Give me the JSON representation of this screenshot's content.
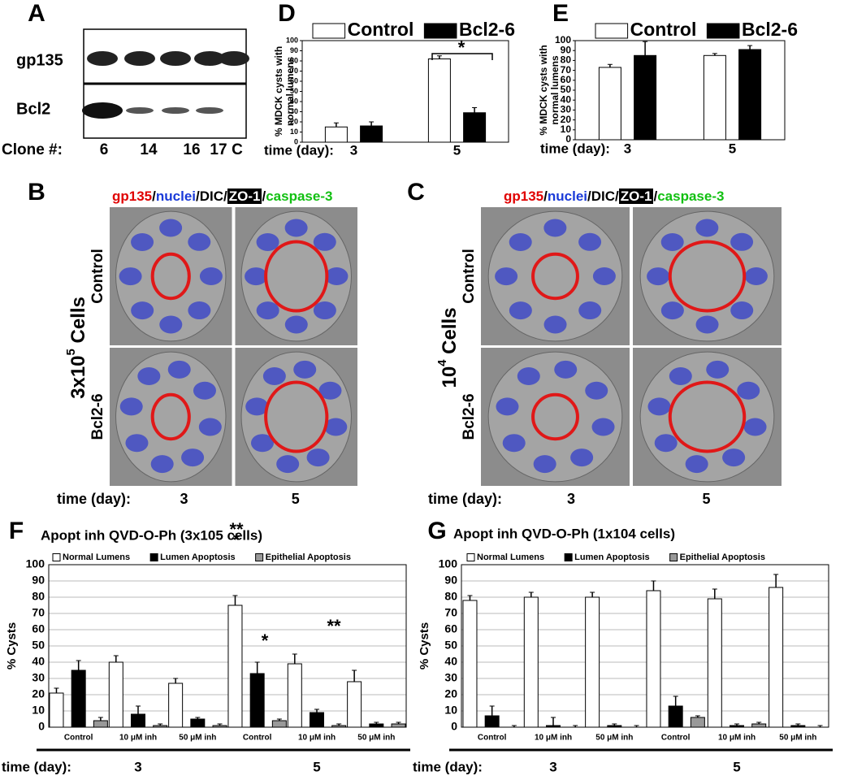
{
  "blot": {
    "panel": "A",
    "rows": [
      "gp135",
      "Bcl2"
    ],
    "lane_label": "Clone #:",
    "lanes": [
      "6",
      "14",
      "16",
      "17",
      "C"
    ]
  },
  "micrographs": [
    {
      "panel": "B",
      "header": [
        {
          "text": "gp135",
          "color": "#e00000"
        },
        {
          "text": "/",
          "color": "#000000"
        },
        {
          "text": "nuclei",
          "color": "#1a3ad8"
        },
        {
          "text": "/DIC/",
          "color": "#000000"
        },
        {
          "text": "ZO-1",
          "color": "#ffffff",
          "box": "#000000"
        },
        {
          "text": "/",
          "color": "#000000"
        },
        {
          "text": "caspase-3",
          "color": "#12c012"
        }
      ],
      "density": [
        "3x10",
        "5",
        " Cells"
      ],
      "rows": [
        "Control",
        "Bcl2-6"
      ],
      "time_label": "time (day):",
      "times": [
        "3",
        "5"
      ]
    },
    {
      "panel": "C",
      "header": [
        {
          "text": "gp135",
          "color": "#e00000"
        },
        {
          "text": "/",
          "color": "#000000"
        },
        {
          "text": "nuclei",
          "color": "#1a3ad8"
        },
        {
          "text": "/DIC/",
          "color": "#000000"
        },
        {
          "text": "ZO-1",
          "color": "#ffffff",
          "box": "#000000"
        },
        {
          "text": "/",
          "color": "#000000"
        },
        {
          "text": "caspase-3",
          "color": "#12c012"
        }
      ],
      "density": [
        "10",
        "4",
        " Cells"
      ],
      "rows": [
        "Control",
        "Bcl2-6"
      ],
      "time_label": "time (day):",
      "times": [
        "3",
        "5"
      ]
    }
  ],
  "chart_data": [
    {
      "type": "bar",
      "panel": "D",
      "ylabel": [
        "% MDCK cysts with",
        "normal lumens"
      ],
      "xlabel": "time (day):",
      "categories": [
        "3",
        "5"
      ],
      "series": [
        {
          "name": "Control",
          "color": "#ffffff",
          "values": [
            15,
            82
          ],
          "errors": [
            4,
            3
          ]
        },
        {
          "name": "Bcl2-6",
          "color": "#000000",
          "values": [
            16,
            29
          ],
          "errors": [
            4,
            5
          ]
        }
      ],
      "ylim": [
        0,
        100
      ],
      "yticks": [
        0,
        10,
        20,
        30,
        40,
        50,
        60,
        70,
        80,
        90,
        100
      ],
      "grid": false,
      "annotations": [
        "*"
      ]
    },
    {
      "type": "bar",
      "panel": "E",
      "ylabel": [
        "% MDCK cysts with",
        "normal lumens"
      ],
      "xlabel": "time (day):",
      "categories": [
        "3",
        "5"
      ],
      "series": [
        {
          "name": "Control",
          "color": "#ffffff",
          "values": [
            73,
            85
          ],
          "errors": [
            3,
            2
          ]
        },
        {
          "name": "Bcl2-6",
          "color": "#000000",
          "values": [
            85,
            91
          ],
          "errors": [
            14,
            4
          ]
        }
      ],
      "ylim": [
        0,
        100
      ],
      "yticks": [
        0,
        10,
        20,
        30,
        40,
        50,
        60,
        70,
        80,
        90,
        100
      ],
      "grid": false,
      "annotations": []
    },
    {
      "type": "bar",
      "panel": "F",
      "title": "Apopt inh QVD-O-Ph (3x105 cells)",
      "ylabel": [
        "% Cysts"
      ],
      "xlabel": "time (day):",
      "groups": [
        "3",
        "5"
      ],
      "categories": [
        "Control",
        "10 μM inh",
        "50 μM inh",
        "Control",
        "10 μM inh",
        "50 μM inh"
      ],
      "series": [
        {
          "name": "Normal Lumens",
          "color": "#ffffff",
          "values": [
            21,
            40,
            27,
            75,
            39,
            28
          ],
          "errors": [
            3,
            4,
            3,
            6,
            6,
            7
          ]
        },
        {
          "name": "Lumen Apoptosis",
          "color": "#000000",
          "values": [
            35,
            8,
            5,
            33,
            9,
            2
          ],
          "errors": [
            6,
            5,
            1,
            7,
            2,
            1
          ]
        },
        {
          "name": "Epithelial Apoptosis",
          "color": "#999999",
          "values": [
            4,
            1,
            1,
            4,
            1,
            2
          ],
          "errors": [
            2,
            1,
            1,
            1,
            1,
            1
          ]
        }
      ],
      "ylim": [
        0,
        100
      ],
      "yticks": [
        0,
        10,
        20,
        30,
        40,
        50,
        60,
        70,
        80,
        90,
        100
      ],
      "grid": true,
      "annotations": [
        "**",
        "*",
        "*",
        "**"
      ]
    },
    {
      "type": "bar",
      "panel": "G",
      "title": "Apopt inh QVD-O-Ph (1x104 cells)",
      "ylabel": [
        "% Cysts"
      ],
      "xlabel": "time (day):",
      "groups": [
        "3",
        "5"
      ],
      "categories": [
        "Control",
        "10 μM inh",
        "50 μM inh",
        "Control",
        "10 μM inh",
        "50 μM inh"
      ],
      "series": [
        {
          "name": "Normal Lumens",
          "color": "#ffffff",
          "values": [
            78,
            80,
            80,
            84,
            79,
            86
          ],
          "errors": [
            3,
            3,
            3,
            6,
            6,
            8
          ]
        },
        {
          "name": "Lumen Apoptosis",
          "color": "#000000",
          "values": [
            7,
            1,
            1,
            13,
            1,
            1
          ],
          "errors": [
            6,
            5,
            1,
            6,
            1,
            1
          ]
        },
        {
          "name": "Epithelial Apoptosis",
          "color": "#999999",
          "values": [
            0,
            0,
            0,
            6,
            2,
            0
          ],
          "errors": [
            1,
            1,
            1,
            1,
            1,
            1
          ]
        }
      ],
      "ylim": [
        0,
        100
      ],
      "yticks": [
        0,
        10,
        20,
        30,
        40,
        50,
        60,
        70,
        80,
        90,
        100
      ],
      "grid": true,
      "annotations": []
    }
  ]
}
